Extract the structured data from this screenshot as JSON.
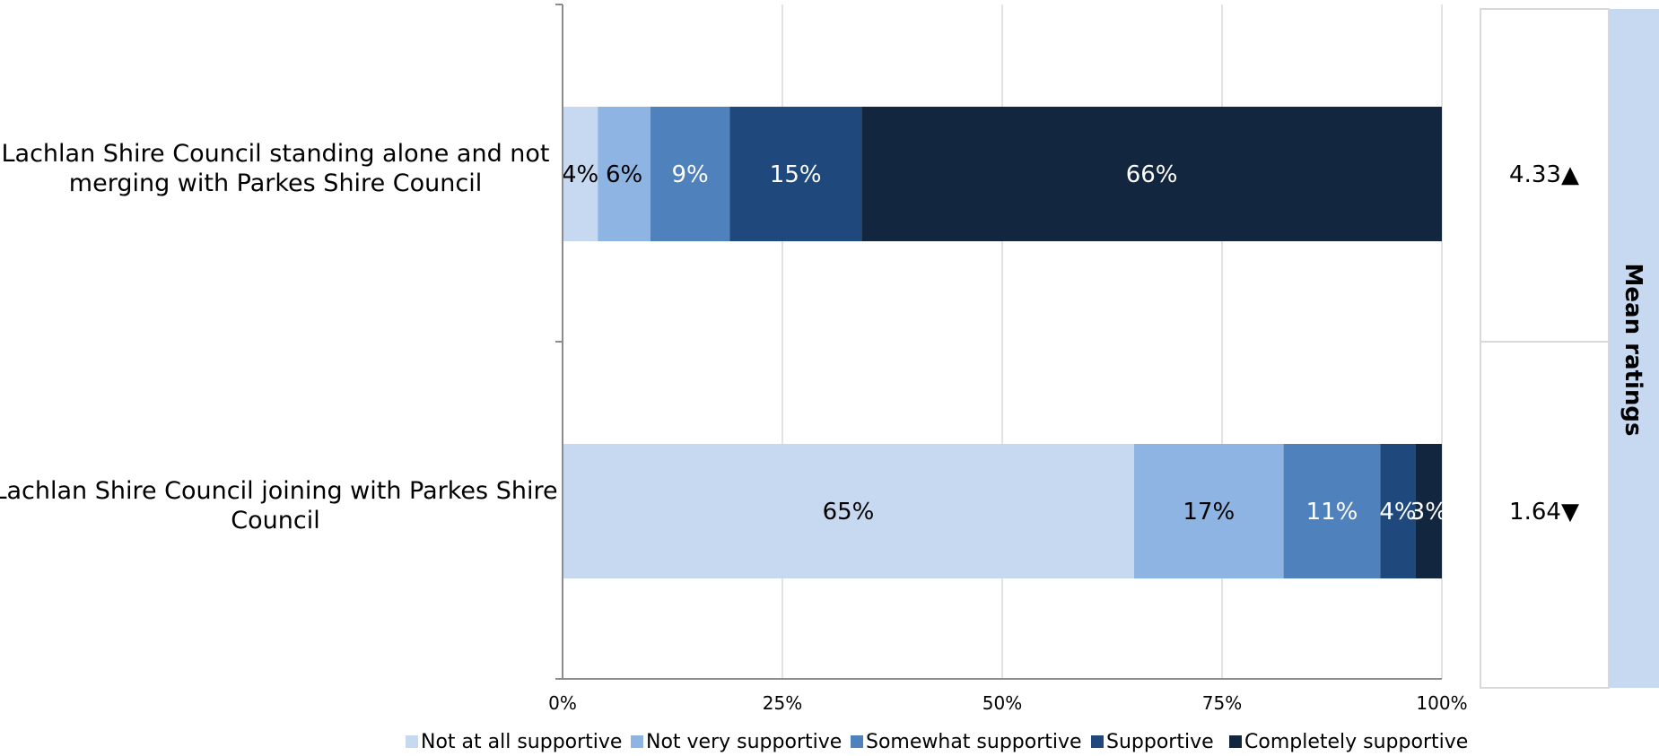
{
  "chart_data": {
    "type": "bar",
    "orientation": "horizontal",
    "stacked": true,
    "categories": [
      "Lachlan Shire Council standing alone and not merging with Parkes Shire Council",
      "Lachlan Shire Council joining with Parkes Shire Council"
    ],
    "category_label_lines": [
      [
        "Lachlan Shire Council standing alone and not",
        "merging with Parkes Shire Council"
      ],
      [
        "Lachlan Shire Council joining with Parkes Shire",
        "Council"
      ]
    ],
    "series": [
      {
        "name": "Not at all supportive",
        "color": "#c6d9f1",
        "label_color": "#000000",
        "values": [
          4,
          65
        ]
      },
      {
        "name": "Not very supportive",
        "color": "#8eb4e3",
        "label_color": "#000000",
        "values": [
          6,
          17
        ]
      },
      {
        "name": "Somewhat supportive",
        "color": "#4f81bd",
        "label_color": "#ffffff",
        "values": [
          9,
          11
        ]
      },
      {
        "name": "Supportive",
        "color": "#1f497d",
        "label_color": "#ffffff",
        "values": [
          15,
          4
        ]
      },
      {
        "name": "Completely supportive",
        "color": "#13263f",
        "label_color": "#ffffff",
        "values": [
          66,
          3
        ]
      }
    ],
    "xlim": [
      0,
      100
    ],
    "x_ticks": [
      "0%",
      "25%",
      "50%",
      "75%",
      "100%"
    ],
    "grid": true,
    "legend_position": "bottom",
    "mean_ratings": {
      "title": "Mean ratings",
      "values": [
        "4.33",
        "1.64"
      ],
      "arrows": [
        "▲",
        "▼"
      ]
    },
    "colors": {
      "grid": "#d9d9d9",
      "axis": "#8c8c8c",
      "mean_band": "#c6d9f1",
      "mean_box_border": "#d9d9d9"
    }
  }
}
